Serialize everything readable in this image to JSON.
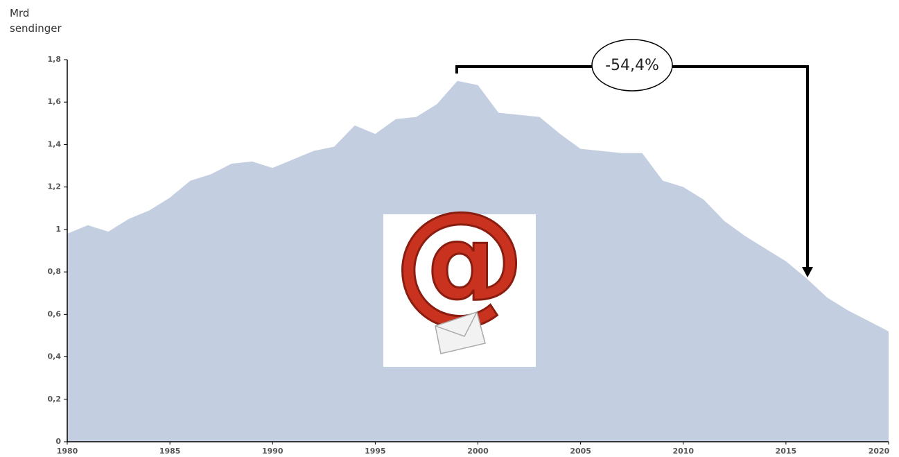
{
  "chart_data": {
    "type": "area",
    "ylabel": [
      "Mrd",
      "sendinger"
    ],
    "annotation": "-54,4%",
    "color": "#c3cfe0",
    "x": [
      1980,
      1981,
      1982,
      1983,
      1984,
      1985,
      1986,
      1987,
      1988,
      1989,
      1990,
      1991,
      1992,
      1993,
      1994,
      1995,
      1996,
      1997,
      1998,
      1999,
      2000,
      2001,
      2002,
      2003,
      2004,
      2005,
      2006,
      2007,
      2008,
      2009,
      2010,
      2011,
      2012,
      2013,
      2014,
      2015,
      2016,
      2017,
      2018,
      2019,
      2020
    ],
    "values": [
      0.98,
      1.02,
      0.99,
      1.05,
      1.09,
      1.15,
      1.23,
      1.26,
      1.31,
      1.32,
      1.29,
      1.33,
      1.37,
      1.39,
      1.49,
      1.45,
      1.52,
      1.53,
      1.59,
      1.7,
      1.68,
      1.55,
      1.54,
      1.53,
      1.45,
      1.38,
      1.37,
      1.36,
      1.36,
      1.23,
      1.2,
      1.14,
      1.04,
      0.97,
      0.91,
      0.85,
      0.77,
      0.68,
      0.62,
      0.57,
      0.52
    ],
    "xlim": [
      1980,
      2020
    ],
    "xticks": [
      1980,
      1985,
      1990,
      1995,
      2000,
      2005,
      2010,
      2015,
      2020
    ],
    "ylim": [
      0,
      1.8
    ],
    "yticks": [
      0,
      {
        "value": 0.2,
        "label": "0,2"
      },
      {
        "value": 0.4,
        "label": "0,4"
      },
      {
        "value": 0.6,
        "label": "0,6"
      },
      {
        "value": 0.8,
        "label": "0,8"
      },
      1,
      {
        "value": 1.2,
        "label": "1,2"
      },
      {
        "value": 1.4,
        "label": "1,4"
      },
      {
        "value": 1.6,
        "label": "1,6"
      },
      {
        "value": 1.8,
        "label": "1,8"
      }
    ]
  }
}
